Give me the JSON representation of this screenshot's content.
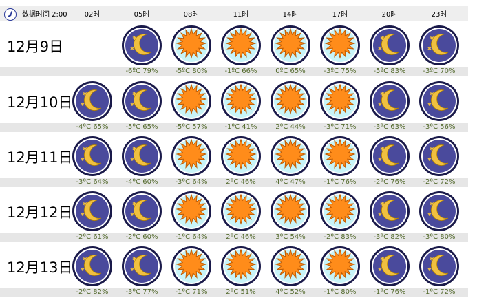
{
  "header": {
    "label": "数据时间 2:00",
    "hours": [
      "02时",
      "05时",
      "08时",
      "11时",
      "14时",
      "17时",
      "20时",
      "23时"
    ]
  },
  "colors": {
    "night_bg": "#4a4a9c",
    "day_bg": "#c8f4f8",
    "ring": "#1a1a4a",
    "sun": "#ff8c1a",
    "moon": "#f0c040",
    "temp_text": "#556b2f",
    "band": "#e6e6e6"
  },
  "rows": [
    {
      "date": "12月9日",
      "cells": [
        null,
        {
          "icon": "moon-stars-icon",
          "temp": "-6ºC",
          "humidity": "79%"
        },
        {
          "icon": "sun-icon",
          "temp": "-5ºC",
          "humidity": "80%"
        },
        {
          "icon": "sun-icon",
          "temp": "-1ºC",
          "humidity": "66%"
        },
        {
          "icon": "sun-icon",
          "temp": "0ºC",
          "humidity": "65%"
        },
        {
          "icon": "sun-icon",
          "temp": "-3ºC",
          "humidity": "75%"
        },
        {
          "icon": "moon-stars-icon",
          "temp": "-5ºC",
          "humidity": "83%"
        },
        {
          "icon": "moon-stars-icon",
          "temp": "-3ºC",
          "humidity": "70%"
        }
      ]
    },
    {
      "date": "12月10日",
      "cells": [
        {
          "icon": "moon-stars-icon",
          "temp": "-4ºC",
          "humidity": "65%"
        },
        {
          "icon": "moon-stars-icon",
          "temp": "-5ºC",
          "humidity": "65%"
        },
        {
          "icon": "sun-icon",
          "temp": "-5ºC",
          "humidity": "57%"
        },
        {
          "icon": "sun-icon",
          "temp": "-1ºC",
          "humidity": "41%"
        },
        {
          "icon": "sun-icon",
          "temp": "2ºC",
          "humidity": "44%"
        },
        {
          "icon": "sun-icon",
          "temp": "-3ºC",
          "humidity": "71%"
        },
        {
          "icon": "moon-stars-icon",
          "temp": "-3ºC",
          "humidity": "63%"
        },
        {
          "icon": "moon-stars-icon",
          "temp": "-3ºC",
          "humidity": "56%"
        }
      ]
    },
    {
      "date": "12月11日",
      "cells": [
        {
          "icon": "moon-stars-icon",
          "temp": "-3ºC",
          "humidity": "64%"
        },
        {
          "icon": "moon-stars-icon",
          "temp": "-4ºC",
          "humidity": "60%"
        },
        {
          "icon": "sun-icon",
          "temp": "-3ºC",
          "humidity": "64%"
        },
        {
          "icon": "sun-icon",
          "temp": "2ºC",
          "humidity": "46%"
        },
        {
          "icon": "sun-icon",
          "temp": "4ºC",
          "humidity": "47%"
        },
        {
          "icon": "sun-icon",
          "temp": "-1ºC",
          "humidity": "76%"
        },
        {
          "icon": "moon-stars-icon",
          "temp": "-2ºC",
          "humidity": "76%"
        },
        {
          "icon": "moon-stars-icon",
          "temp": "-2ºC",
          "humidity": "72%"
        }
      ]
    },
    {
      "date": "12月12日",
      "cells": [
        {
          "icon": "moon-stars-icon",
          "temp": "-2ºC",
          "humidity": "61%"
        },
        {
          "icon": "moon-stars-icon",
          "temp": "-2ºC",
          "humidity": "60%"
        },
        {
          "icon": "sun-icon",
          "temp": "-1ºC",
          "humidity": "64%"
        },
        {
          "icon": "sun-icon",
          "temp": "2ºC",
          "humidity": "46%"
        },
        {
          "icon": "sun-icon",
          "temp": "3ºC",
          "humidity": "54%"
        },
        {
          "icon": "sun-icon",
          "temp": "-2ºC",
          "humidity": "83%"
        },
        {
          "icon": "moon-stars-icon",
          "temp": "-3ºC",
          "humidity": "82%"
        },
        {
          "icon": "moon-stars-icon",
          "temp": "-3ºC",
          "humidity": "80%"
        }
      ]
    },
    {
      "date": "12月13日",
      "cells": [
        {
          "icon": "moon-stars-icon",
          "temp": "-2ºC",
          "humidity": "82%"
        },
        {
          "icon": "moon-stars-icon",
          "temp": "-3ºC",
          "humidity": "77%"
        },
        {
          "icon": "sun-icon",
          "temp": "-1ºC",
          "humidity": "71%"
        },
        {
          "icon": "sun-icon",
          "temp": "2ºC",
          "humidity": "51%"
        },
        {
          "icon": "sun-icon",
          "temp": "4ºC",
          "humidity": "52%"
        },
        {
          "icon": "sun-icon",
          "temp": "-1ºC",
          "humidity": "80%"
        },
        {
          "icon": "moon-stars-icon",
          "temp": "-1ºC",
          "humidity": "76%"
        },
        {
          "icon": "moon-stars-icon",
          "temp": "-1ºC",
          "humidity": "72%"
        }
      ]
    }
  ]
}
